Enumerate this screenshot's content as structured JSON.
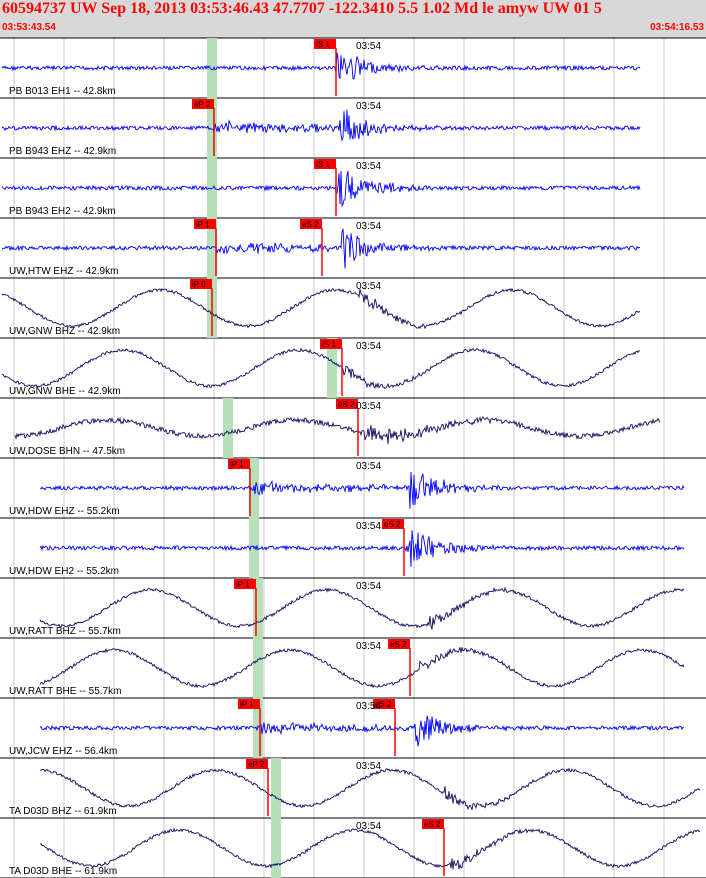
{
  "header": {
    "title": "60594737 UW Sep 18, 2013 03:53:46.43   47.7707 -122.3410  5.5 1.02 Md le amyw UW 01   5",
    "start_time": "03:53:43.54",
    "end_time": "03:54:16.53"
  },
  "chart_data": {
    "type": "line",
    "title": "60594737 UW Sep 18, 2013 03:53:46.43   47.7707 -122.3410  5.5 1.02 Md le amyw UW 01   5",
    "x_range": [
      "03:53:43.54",
      "03:54:16.53"
    ],
    "time_marker": "03:54",
    "grid": true,
    "colors": {
      "trace_blue": "#0000ff",
      "trace_dark": "#1a0a60",
      "pick": "#ff0000",
      "window": "#b8e0b8"
    },
    "traces": [
      {
        "label": "PB B013 EH1 -- 42.8km",
        "color": "trace_blue",
        "pick": "iS 1",
        "kind": "burst"
      },
      {
        "label": "PB B943 EHZ -- 42.9km",
        "color": "trace_blue",
        "pick": "eP 2",
        "kind": "burst"
      },
      {
        "label": "PB B943 EH2 -- 42.9km",
        "color": "trace_blue",
        "pick": "iS 1",
        "kind": "burst"
      },
      {
        "label": "UW,HTW EHZ -- 42.9km",
        "color": "trace_blue",
        "picks": [
          "iP 1",
          "eS 2"
        ],
        "kind": "burst"
      },
      {
        "label": "UW,GNW BHZ -- 42.9km",
        "color": "trace_dark",
        "pick": "iP 0",
        "kind": "long"
      },
      {
        "label": "UW,GNW BHE -- 42.9km",
        "color": "trace_dark",
        "pick": "iS 1",
        "kind": "long"
      },
      {
        "label": "UW,DOSE BHN -- 47.5km",
        "color": "trace_dark",
        "pick": "eS 2",
        "kind": "noisy"
      },
      {
        "label": "UW,HDW EHZ -- 55.2km",
        "color": "trace_blue",
        "pick": "iP 1",
        "kind": "burst"
      },
      {
        "label": "UW,HDW EH2 -- 55.2km",
        "color": "trace_blue",
        "pick": "eS 2",
        "kind": "burst"
      },
      {
        "label": "UW,RATT BHZ -- 55.7km",
        "color": "trace_dark",
        "pick": "iP 1",
        "kind": "long"
      },
      {
        "label": "UW,RATT BHE -- 55.7km",
        "color": "trace_dark",
        "pick": "eS 2",
        "kind": "long"
      },
      {
        "label": "UW,JCW EHZ -- 56.4km",
        "color": "trace_blue",
        "picks": [
          "iP 1",
          "eS 2"
        ],
        "kind": "burst"
      },
      {
        "label": "TA D03D BHZ -- 61.9km",
        "color": "trace_dark",
        "pick": "eP 2",
        "kind": "long"
      },
      {
        "label": "TA D03D BHE -- 61.9km",
        "color": "trace_dark",
        "pick": "eS 2",
        "kind": "long"
      }
    ]
  }
}
